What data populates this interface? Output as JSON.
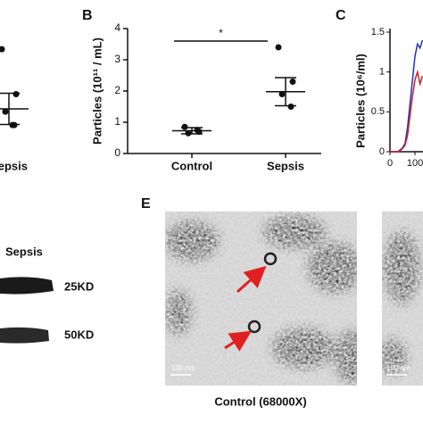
{
  "chart_data": [
    {
      "type": "dotplot",
      "categories": [
        "Sepsis"
      ],
      "points": [
        [
          3.34,
          1.9,
          1.34,
          0.91,
          0.91
        ]
      ],
      "mean": [
        1.43
      ],
      "sem": [
        0.5
      ],
      "ylim": [
        0,
        4
      ],
      "color": "#111111"
    },
    {
      "type": "dotplot",
      "label": "B",
      "y_label": "Particles (10¹¹ / mL)",
      "categories": [
        "Control",
        "Sepsis"
      ],
      "points": [
        [
          0.85,
          0.7,
          0.65,
          0.75
        ],
        [
          3.4,
          2.3,
          1.9,
          1.5
        ]
      ],
      "mean": [
        0.73,
        1.98
      ],
      "sem": [
        0.1,
        0.45
      ],
      "significance": "*",
      "ylim": [
        0,
        4
      ],
      "yticks": [
        0,
        1,
        2,
        3,
        4
      ],
      "color": "#111111"
    },
    {
      "type": "line",
      "label": "C",
      "y_label": "Particles (10⁶/ml)",
      "x": [
        0,
        10,
        20,
        30,
        40,
        50,
        60,
        70,
        80,
        90,
        100,
        110,
        120,
        130
      ],
      "series": [
        {
          "color": "#2233bb",
          "values": [
            0,
            0,
            0,
            0,
            0.02,
            0.05,
            0.1,
            0.3,
            0.6,
            0.9,
            1.2,
            1.35,
            1.3,
            1.4
          ]
        },
        {
          "color": "#cc2222",
          "values": [
            0,
            0,
            0,
            0,
            0.01,
            0.04,
            0.08,
            0.2,
            0.45,
            0.7,
            0.9,
            1.0,
            0.85,
            0.95
          ]
        }
      ],
      "xlim": [
        0,
        132
      ],
      "xticks": [
        0,
        100
      ],
      "ylim": [
        0,
        1.5
      ],
      "yticks": [
        0,
        0.5,
        1,
        1.5
      ]
    }
  ],
  "blot": {
    "header": "Sepsis",
    "bands": [
      "25KD",
      "50KD"
    ]
  },
  "micrograph": {
    "label": "E",
    "caption": "Control (68000X)",
    "scale_bars": [
      "100 nm",
      "100 nm"
    ]
  }
}
